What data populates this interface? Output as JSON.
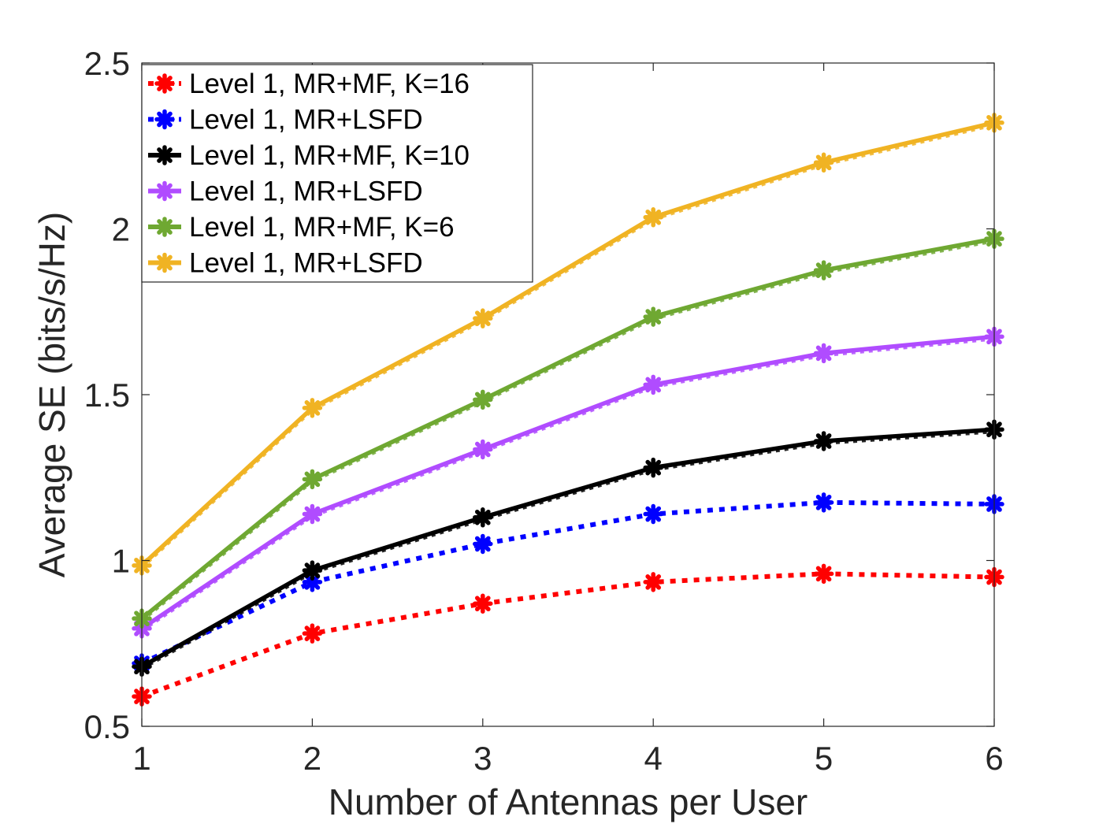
{
  "chart_data": {
    "type": "line",
    "title": "",
    "xlabel": "Number of Antennas per User",
    "ylabel": "Average SE (bits/s/Hz)",
    "xlim": [
      1,
      6
    ],
    "ylim": [
      0.5,
      2.5
    ],
    "xticks": [
      1,
      2,
      3,
      4,
      5,
      6
    ],
    "yticks": [
      0.5,
      1,
      1.5,
      2,
      2.5
    ],
    "xtick_labels": [
      "1",
      "2",
      "3",
      "4",
      "5",
      "6"
    ],
    "ytick_labels": [
      "0.5",
      "1",
      "1.5",
      "2",
      "2.5"
    ],
    "grid": false,
    "legend_position": "top-left",
    "x": [
      1,
      2,
      3,
      4,
      5,
      6
    ],
    "series": [
      {
        "name": "Level 1, MR+MF, K=16",
        "color": "#ff0000",
        "line_style": "dotted",
        "marker": "asterisk",
        "values": [
          0.59,
          0.78,
          0.87,
          0.935,
          0.96,
          0.95
        ]
      },
      {
        "name": "Level 1, MR+LSFD",
        "color": "#0000ff",
        "line_style": "dotted",
        "marker": "asterisk",
        "values": [
          0.69,
          0.935,
          1.05,
          1.14,
          1.175,
          1.17
        ]
      },
      {
        "name": "Level 1, MR+MF, K=10",
        "color": "#000000",
        "line_style": "solid",
        "marker": "asterisk",
        "values": [
          0.68,
          0.97,
          1.13,
          1.28,
          1.36,
          1.395
        ]
      },
      {
        "name": "Level 1, MR+LSFD",
        "color": "#b04cff",
        "line_style": "solid",
        "marker": "asterisk",
        "values": [
          0.795,
          1.14,
          1.335,
          1.53,
          1.625,
          1.675
        ]
      },
      {
        "name": "Level 1, MR+MF, K=6",
        "color": "#6fa832",
        "line_style": "solid",
        "marker": "asterisk",
        "values": [
          0.825,
          1.245,
          1.485,
          1.735,
          1.875,
          1.97
        ]
      },
      {
        "name": "Level 1, MR+LSFD",
        "color": "#f0b323",
        "line_style": "solid",
        "marker": "asterisk",
        "values": [
          0.985,
          1.46,
          1.73,
          2.035,
          2.2,
          2.32
        ]
      }
    ]
  }
}
